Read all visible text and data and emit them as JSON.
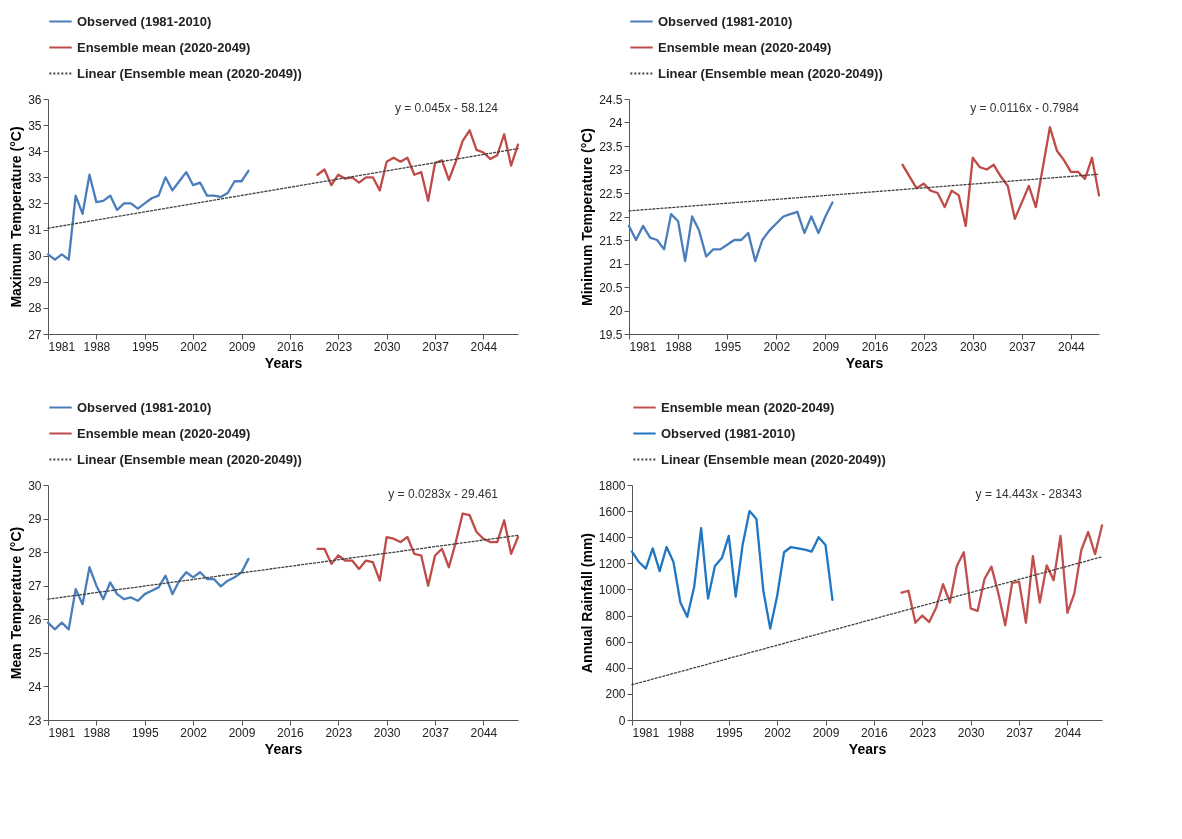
{
  "chart_data": [
    {
      "type": "line",
      "xlabel": "Years",
      "ylabel": "Maximum Temperature (°C)",
      "xlim": [
        1981,
        2049
      ],
      "xticks": [
        1981,
        1988,
        1995,
        2002,
        2009,
        2016,
        2023,
        2030,
        2037,
        2044
      ],
      "ylim": [
        27,
        36
      ],
      "yticks": [
        27,
        28,
        29,
        30,
        31,
        32,
        33,
        34,
        35,
        36
      ],
      "grid": false,
      "legend": "top",
      "marker": "none",
      "series": [
        {
          "name": "Observed (1981-2010)",
          "color": "#4a7ebb",
          "x": [
            1981,
            1982,
            1983,
            1984,
            1985,
            1986,
            1987,
            1988,
            1989,
            1990,
            1991,
            1992,
            1993,
            1994,
            1995,
            1996,
            1997,
            1998,
            1999,
            2000,
            2001,
            2002,
            2003,
            2004,
            2005,
            2006,
            2007,
            2008,
            2009,
            2010
          ],
          "values": [
            30.05,
            29.85,
            30.05,
            29.85,
            32.3,
            31.6,
            33.1,
            32.05,
            32.1,
            32.3,
            31.75,
            32.0,
            32.0,
            31.8,
            32.0,
            32.2,
            32.3,
            33.0,
            32.5,
            32.85,
            33.2,
            32.7,
            32.8,
            32.3,
            32.3,
            32.25,
            32.4,
            32.85,
            32.85,
            33.25
          ]
        },
        {
          "name": "Ensemble mean (2020-2049)",
          "color": "#be4b48",
          "x": [
            2020,
            2021,
            2022,
            2023,
            2024,
            2025,
            2026,
            2027,
            2028,
            2029,
            2030,
            2031,
            2032,
            2033,
            2034,
            2035,
            2036,
            2037,
            2038,
            2039,
            2040,
            2041,
            2042,
            2043,
            2044,
            2045,
            2046,
            2047,
            2048,
            2049
          ],
          "values": [
            33.1,
            33.3,
            32.7,
            33.1,
            32.95,
            33.0,
            32.8,
            33.0,
            33.0,
            32.5,
            33.6,
            33.75,
            33.6,
            33.75,
            33.1,
            33.2,
            32.1,
            33.55,
            33.65,
            32.9,
            33.6,
            34.4,
            34.8,
            34.05,
            33.95,
            33.7,
            33.85,
            34.65,
            33.45,
            34.25
          ]
        },
        {
          "name": "Linear (Ensemble mean (2020-2049))",
          "type": "line",
          "line_style": "dotted",
          "color": "#404040",
          "x": [
            1981,
            2049
          ],
          "values": [
            31.05,
            34.1
          ]
        }
      ],
      "annotations": [
        "y = 0.045x - 58.124"
      ]
    },
    {
      "type": "line",
      "xlabel": "Years",
      "ylabel": "Minimum Temperature (°C)",
      "xlim": [
        1981,
        2048
      ],
      "xticks": [
        1981,
        1988,
        1995,
        2002,
        2009,
        2016,
        2023,
        2030,
        2037,
        2044
      ],
      "ylim": [
        19.5,
        24.5
      ],
      "yticks": [
        19.5,
        20,
        20.5,
        21,
        21.5,
        22,
        22.5,
        23,
        23.5,
        24,
        24.5
      ],
      "grid": false,
      "legend": "top",
      "marker": "none",
      "series": [
        {
          "name": "Observed (1981-2010)",
          "color": "#4a7ebb",
          "x": [
            1981,
            1982,
            1983,
            1984,
            1985,
            1986,
            1987,
            1988,
            1989,
            1990,
            1991,
            1992,
            1993,
            1994,
            1995,
            1996,
            1997,
            1998,
            1999,
            2000,
            2001,
            2002,
            2003,
            2004,
            2005,
            2006,
            2007,
            2008,
            2009,
            2010
          ],
          "values": [
            21.8,
            21.5,
            21.8,
            21.55,
            21.5,
            21.3,
            22.05,
            21.9,
            21.05,
            22.0,
            21.7,
            21.15,
            21.3,
            21.3,
            21.4,
            21.5,
            21.5,
            21.65,
            21.05,
            21.5,
            21.7,
            21.85,
            22.0,
            22.05,
            22.1,
            21.65,
            22.0,
            21.65,
            22.0,
            22.3
          ]
        },
        {
          "name": "Ensemble mean (2020-2049)",
          "color": "#be4b48",
          "x": [
            2020,
            2021,
            2022,
            2023,
            2024,
            2025,
            2026,
            2027,
            2028,
            2029,
            2030,
            2031,
            2032,
            2033,
            2034,
            2035,
            2036,
            2037,
            2038,
            2039,
            2040,
            2041,
            2042,
            2043,
            2044,
            2045,
            2046,
            2047,
            2048
          ],
          "values": [
            23.1,
            22.85,
            22.6,
            22.7,
            22.55,
            22.5,
            22.2,
            22.55,
            22.45,
            21.8,
            23.25,
            23.05,
            23.0,
            23.1,
            22.85,
            22.65,
            21.95,
            22.3,
            22.65,
            22.2,
            23.05,
            23.9,
            23.4,
            23.2,
            22.95,
            22.95,
            22.8,
            23.25,
            22.45
          ]
        },
        {
          "name": "Linear (Ensemble mean (2020-2049))",
          "type": "line",
          "line_style": "dotted",
          "color": "#404040",
          "x": [
            1981,
            2048
          ],
          "values": [
            22.12,
            22.9
          ]
        }
      ],
      "annotations": [
        "y = 0.0116x - 0.7984"
      ]
    },
    {
      "type": "line",
      "xlabel": "Years",
      "ylabel": "Mean Temperature (°C)",
      "xlim": [
        1981,
        2049
      ],
      "xticks": [
        1981,
        1988,
        1995,
        2002,
        2009,
        2016,
        2023,
        2030,
        2037,
        2044
      ],
      "ylim": [
        23,
        30
      ],
      "yticks": [
        23,
        24,
        25,
        26,
        27,
        28,
        29,
        30
      ],
      "grid": false,
      "legend": "top",
      "marker": "none",
      "series": [
        {
          "name": "Observed (1981-2010)",
          "color": "#4a7ebb",
          "x": [
            1981,
            1982,
            1983,
            1984,
            1985,
            1986,
            1987,
            1988,
            1989,
            1990,
            1991,
            1992,
            1993,
            1994,
            1995,
            1996,
            1997,
            1998,
            1999,
            2000,
            2001,
            2002,
            2003,
            2004,
            2005,
            2006,
            2007,
            2008,
            2009,
            2010
          ],
          "values": [
            25.9,
            25.7,
            25.9,
            25.7,
            26.9,
            26.45,
            27.55,
            27.0,
            26.6,
            27.1,
            26.75,
            26.6,
            26.65,
            26.55,
            26.75,
            26.85,
            26.95,
            27.3,
            26.75,
            27.15,
            27.4,
            27.25,
            27.4,
            27.2,
            27.2,
            26.98,
            27.15,
            27.25,
            27.4,
            27.8
          ]
        },
        {
          "name": "Ensemble mean (2020-2049)",
          "color": "#be4b48",
          "x": [
            2020,
            2021,
            2022,
            2023,
            2024,
            2025,
            2026,
            2027,
            2028,
            2029,
            2030,
            2031,
            2032,
            2033,
            2034,
            2035,
            2036,
            2037,
            2038,
            2039,
            2040,
            2041,
            2042,
            2043,
            2044,
            2045,
            2046,
            2047,
            2048,
            2049
          ],
          "values": [
            28.1,
            28.1,
            27.65,
            27.9,
            27.75,
            27.75,
            27.5,
            27.75,
            27.7,
            27.15,
            28.45,
            28.4,
            28.3,
            28.45,
            27.95,
            27.9,
            27.0,
            27.9,
            28.1,
            27.55,
            28.3,
            29.15,
            29.1,
            28.6,
            28.4,
            28.3,
            28.3,
            28.95,
            27.95,
            28.45
          ]
        },
        {
          "name": "Linear (Ensemble mean (2020-2049))",
          "type": "line",
          "line_style": "dotted",
          "color": "#404040",
          "x": [
            1981,
            2049
          ],
          "values": [
            26.6,
            28.5
          ]
        }
      ],
      "annotations": [
        "y = 0.0283x - 29.461"
      ]
    },
    {
      "type": "line",
      "xlabel": "Years",
      "ylabel": "Annual Rainfall (mm)",
      "xlim": [
        1981,
        2049
      ],
      "xticks": [
        1981,
        1988,
        1995,
        2002,
        2009,
        2016,
        2023,
        2030,
        2037,
        2044
      ],
      "ylim": [
        0,
        1800
      ],
      "yticks": [
        0,
        200,
        400,
        600,
        800,
        1000,
        1200,
        1400,
        1600,
        1800
      ],
      "grid": false,
      "legend": "top",
      "marker": "none",
      "series": [
        {
          "name": "Ensemble mean (2020-2049)",
          "color": "#c0504d",
          "x": [
            2020,
            2021,
            2022,
            2023,
            2024,
            2025,
            2026,
            2027,
            2028,
            2029,
            2030,
            2031,
            2032,
            2033,
            2034,
            2035,
            2036,
            2037,
            2038,
            2039,
            2040,
            2041,
            2042,
            2043,
            2044,
            2045,
            2046,
            2047,
            2048,
            2049
          ],
          "values": [
            975,
            990,
            745,
            800,
            750,
            860,
            1040,
            900,
            1180,
            1285,
            855,
            835,
            1080,
            1175,
            970,
            725,
            1050,
            1060,
            745,
            1255,
            900,
            1185,
            1070,
            1410,
            820,
            970,
            1300,
            1440,
            1270,
            1490
          ]
        },
        {
          "name": "Observed (1981-2010)",
          "color": "#1f77c4",
          "x": [
            1981,
            1982,
            1983,
            1984,
            1985,
            1986,
            1987,
            1988,
            1989,
            1990,
            1991,
            1992,
            1993,
            1994,
            1995,
            1996,
            1997,
            1998,
            1999,
            2000,
            2001,
            2002,
            2003,
            2004,
            2005,
            2006,
            2007,
            2008,
            2009,
            2010
          ],
          "values": [
            1290,
            1210,
            1160,
            1315,
            1140,
            1325,
            1210,
            900,
            790,
            1020,
            1470,
            930,
            1180,
            1240,
            1410,
            945,
            1340,
            1600,
            1540,
            990,
            700,
            950,
            1285,
            1325,
            1315,
            1305,
            1290,
            1400,
            1340,
            920
          ]
        },
        {
          "name": "Linear (Ensemble mean (2020-2049))",
          "type": "line",
          "line_style": "dotted",
          "color": "#404040",
          "x": [
            1981,
            2049
          ],
          "values": [
            270,
            1250
          ]
        }
      ],
      "annotations": [
        "y = 14.443x - 28343"
      ]
    }
  ]
}
